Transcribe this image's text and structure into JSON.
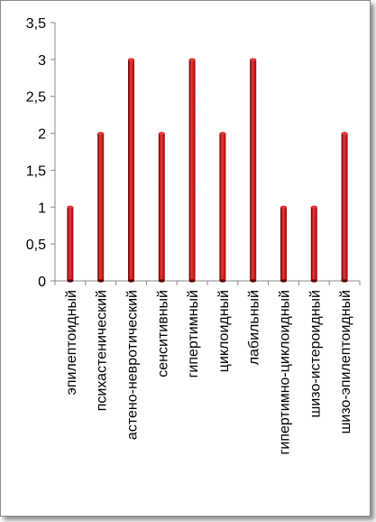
{
  "chart_data": {
    "type": "bar",
    "title": "",
    "xlabel": "",
    "ylabel": "",
    "ylim": [
      0,
      3.5
    ],
    "grid": false,
    "legend": "none",
    "y_ticks": [
      "0",
      "0,5",
      "1",
      "1,5",
      "2",
      "2,5",
      "3",
      "3,5"
    ],
    "y_tick_values": [
      0,
      0.5,
      1,
      1.5,
      2,
      2.5,
      3,
      3.5
    ],
    "categories": [
      "эпилептоидный",
      "психастенический",
      "астено-невротический",
      "сенситивный",
      "гипертимный",
      "циклоидный",
      "лабильный",
      "гипертимно-циклоидный",
      "шизо-истероидный",
      "шизо-эпилептоидный"
    ],
    "values": [
      1,
      2,
      3,
      2,
      3,
      2,
      3,
      1,
      1,
      2
    ],
    "colors": {
      "bar": "#b30000",
      "bar_highlight": "#e23a3a",
      "bar_shadow": "#5a0000",
      "axis": "#8a8a8a"
    }
  }
}
